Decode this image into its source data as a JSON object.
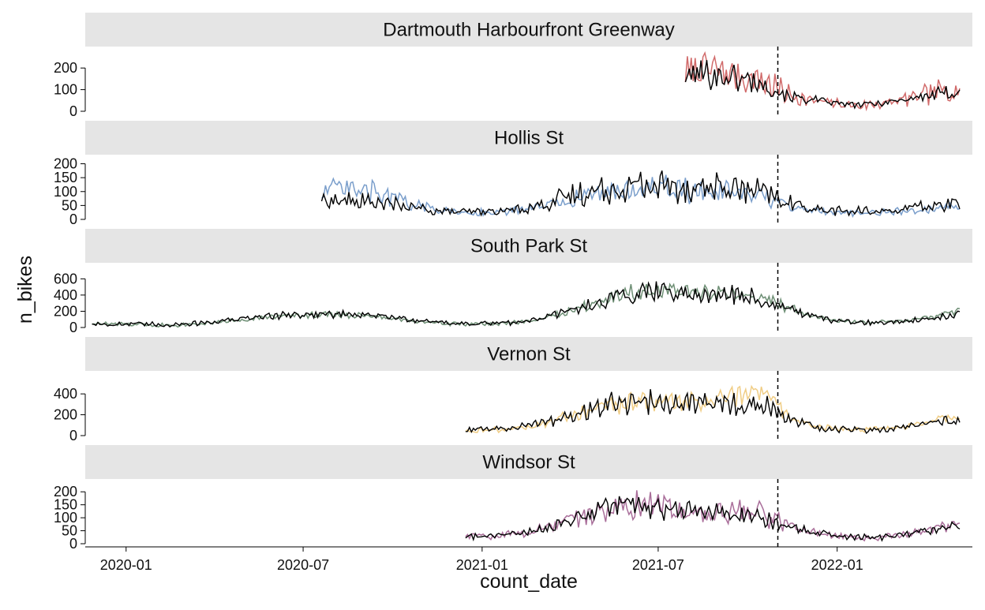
{
  "chart_data": {
    "type": "line",
    "layout": "faceted (5 panels stacked vertically, shared x axis)",
    "xlabel": "count_date",
    "ylabel": "n_bikes",
    "x_axis": {
      "type": "date",
      "range": [
        "2019-11-20",
        "2022-05-20"
      ],
      "ticks": [
        "2020-01-01",
        "2020-07-01",
        "2021-01-01",
        "2021-07-01",
        "2022-01-01"
      ],
      "tick_labels": [
        "2020-01",
        "2020-07",
        "2021-01",
        "2021-07",
        "2022-01"
      ]
    },
    "reference_line": {
      "x": "2021-11-01",
      "style": "dashed",
      "color": "#000000"
    },
    "grid": false,
    "legend": "none",
    "overlay_line_color": "#000000",
    "panels": [
      {
        "title": "Dartmouth Harbourfront Greenway",
        "color": "#d16b6b",
        "ylim": [
          0,
          270
        ],
        "yticks": [
          0,
          100,
          200
        ],
        "ytick_labels": [
          "0",
          "100",
          "200"
        ],
        "observed": {
          "x": [
            "2021-07-29",
            "2021-08-10",
            "2021-08-25",
            "2021-09-10",
            "2021-09-25",
            "2021-10-10",
            "2021-10-25",
            "2021-11-10",
            "2021-11-25",
            "2021-12-10",
            "2021-12-25",
            "2022-01-10",
            "2022-01-25",
            "2022-02-10",
            "2022-02-25",
            "2022-03-10",
            "2022-03-25",
            "2022-04-10",
            "2022-04-25",
            "2022-05-08"
          ],
          "y": [
            160,
            200,
            190,
            175,
            160,
            150,
            120,
            80,
            60,
            45,
            40,
            30,
            25,
            35,
            40,
            55,
            65,
            85,
            100,
            110
          ],
          "amplitude": 85
        },
        "fitted": {
          "x": [
            "2021-07-29",
            "2021-08-10",
            "2021-08-25",
            "2021-09-10",
            "2021-09-25",
            "2021-10-10",
            "2021-10-25",
            "2021-11-10",
            "2021-11-25",
            "2021-12-10",
            "2021-12-25",
            "2022-01-10",
            "2022-01-25",
            "2022-02-10",
            "2022-02-25",
            "2022-03-10",
            "2022-03-25",
            "2022-04-10",
            "2022-04-25",
            "2022-05-08"
          ],
          "y": [
            150,
            180,
            170,
            160,
            150,
            135,
            110,
            75,
            60,
            50,
            40,
            32,
            30,
            35,
            45,
            55,
            65,
            75,
            85,
            95
          ],
          "amplitude": 55
        }
      },
      {
        "title": "Hollis St",
        "color": "#7a9ecb",
        "ylim": [
          0,
          210
        ],
        "yticks": [
          0,
          50,
          100,
          150,
          200
        ],
        "ytick_labels": [
          "0",
          "50",
          "100",
          "150",
          "200"
        ],
        "observed": {
          "x": [
            "2020-07-20",
            "2020-08-15",
            "2020-09-15",
            "2020-10-15",
            "2020-11-15",
            "2020-12-15",
            "2021-01-15",
            "2021-02-15",
            "2021-03-15",
            "2021-04-15",
            "2021-05-15",
            "2021-06-15",
            "2021-07-15",
            "2021-08-15",
            "2021-09-15",
            "2021-10-15",
            "2021-11-15",
            "2021-12-15",
            "2022-01-15",
            "2022-02-15",
            "2022-03-15",
            "2022-04-15",
            "2022-05-08"
          ],
          "y": [
            110,
            105,
            95,
            60,
            35,
            25,
            25,
            35,
            55,
            85,
            105,
            110,
            110,
            100,
            95,
            80,
            45,
            30,
            25,
            25,
            30,
            40,
            45
          ],
          "amplitude": 45
        },
        "fitted": {
          "x": [
            "2020-07-20",
            "2020-08-15",
            "2020-09-15",
            "2020-10-15",
            "2020-11-15",
            "2020-12-15",
            "2021-01-15",
            "2021-02-15",
            "2021-03-15",
            "2021-04-15",
            "2021-05-15",
            "2021-06-15",
            "2021-07-15",
            "2021-08-15",
            "2021-09-15",
            "2021-10-15",
            "2021-11-15",
            "2021-12-15",
            "2022-01-15",
            "2022-02-15",
            "2022-03-15",
            "2022-04-15",
            "2022-05-08"
          ],
          "y": [
            70,
            65,
            60,
            45,
            30,
            25,
            28,
            40,
            65,
            95,
            115,
            120,
            120,
            115,
            110,
            95,
            55,
            35,
            28,
            30,
            38,
            50,
            60
          ],
          "amplitude": 55
        }
      },
      {
        "title": "South Park St",
        "color": "#6e8f75",
        "ylim": [
          0,
          720
        ],
        "yticks": [
          0,
          200,
          400,
          600
        ],
        "ytick_labels": [
          "0",
          "200",
          "400",
          "600"
        ],
        "observed": {
          "x": [
            "2019-11-27",
            "2019-12-25",
            "2020-01-25",
            "2020-02-25",
            "2020-03-25",
            "2020-04-25",
            "2020-05-25",
            "2020-06-25",
            "2020-07-25",
            "2020-08-25",
            "2020-09-25",
            "2020-10-25",
            "2020-11-25",
            "2020-12-25",
            "2021-01-25",
            "2021-02-25",
            "2021-03-25",
            "2021-04-25",
            "2021-05-25",
            "2021-06-25",
            "2021-07-25",
            "2021-08-25",
            "2021-09-25",
            "2021-10-25",
            "2021-11-25",
            "2021-12-25",
            "2022-01-25",
            "2022-02-25",
            "2022-03-25",
            "2022-04-25",
            "2022-05-08"
          ],
          "y": [
            50,
            40,
            30,
            35,
            60,
            90,
            130,
            150,
            160,
            150,
            120,
            80,
            50,
            40,
            50,
            90,
            180,
            300,
            420,
            470,
            440,
            420,
            400,
            330,
            180,
            90,
            60,
            70,
            100,
            170,
            200
          ],
          "amplitude": 90
        },
        "fitted": {
          "x": [
            "2019-11-27",
            "2019-12-25",
            "2020-01-25",
            "2020-02-25",
            "2020-03-25",
            "2020-04-25",
            "2020-05-25",
            "2020-06-25",
            "2020-07-25",
            "2020-08-25",
            "2020-09-25",
            "2020-10-25",
            "2020-11-25",
            "2020-12-25",
            "2021-01-25",
            "2021-02-25",
            "2021-03-25",
            "2021-04-25",
            "2021-05-25",
            "2021-06-25",
            "2021-07-25",
            "2021-08-25",
            "2021-09-25",
            "2021-10-25",
            "2021-11-25",
            "2021-12-25",
            "2022-01-25",
            "2022-02-25",
            "2022-03-25",
            "2022-04-25",
            "2022-05-08"
          ],
          "y": [
            45,
            40,
            35,
            40,
            65,
            100,
            140,
            160,
            165,
            160,
            130,
            90,
            60,
            45,
            55,
            95,
            180,
            290,
            400,
            460,
            430,
            410,
            390,
            320,
            170,
            85,
            55,
            65,
            95,
            150,
            180
          ],
          "amplitude": 110
        }
      },
      {
        "title": "Vernon St",
        "color": "#f0cd85",
        "ylim": [
          0,
          560
        ],
        "yticks": [
          0,
          200,
          400
        ],
        "ytick_labels": [
          "0",
          "200",
          "400"
        ],
        "observed": {
          "x": [
            "2020-12-15",
            "2021-01-15",
            "2021-02-15",
            "2021-03-15",
            "2021-04-15",
            "2021-05-15",
            "2021-06-15",
            "2021-07-15",
            "2021-08-15",
            "2021-09-15",
            "2021-10-15",
            "2021-11-15",
            "2021-12-15",
            "2022-01-15",
            "2022-02-15",
            "2022-03-15",
            "2022-04-15",
            "2022-05-08"
          ],
          "y": [
            50,
            55,
            80,
            140,
            220,
            290,
            330,
            320,
            330,
            380,
            400,
            150,
            80,
            60,
            60,
            90,
            150,
            190
          ],
          "amplitude": 90
        },
        "fitted": {
          "x": [
            "2020-12-15",
            "2021-01-15",
            "2021-02-15",
            "2021-03-15",
            "2021-04-15",
            "2021-05-15",
            "2021-06-15",
            "2021-07-15",
            "2021-08-15",
            "2021-09-15",
            "2021-10-15",
            "2021-11-15",
            "2021-12-15",
            "2022-01-15",
            "2022-02-15",
            "2022-03-15",
            "2022-04-15",
            "2022-05-08"
          ],
          "y": [
            55,
            60,
            90,
            150,
            230,
            300,
            340,
            330,
            320,
            320,
            300,
            140,
            75,
            55,
            58,
            85,
            130,
            160
          ],
          "amplitude": 110
        }
      },
      {
        "title": "Windsor St",
        "color": "#a96e9a",
        "ylim": [
          0,
          225
        ],
        "yticks": [
          0,
          50,
          100,
          150,
          200
        ],
        "ytick_labels": [
          "0",
          "50",
          "100",
          "150",
          "200"
        ],
        "observed": {
          "x": [
            "2020-12-15",
            "2021-01-15",
            "2021-02-15",
            "2021-03-15",
            "2021-04-15",
            "2021-05-15",
            "2021-06-15",
            "2021-07-15",
            "2021-08-15",
            "2021-09-15",
            "2021-10-15",
            "2021-11-15",
            "2021-12-15",
            "2022-01-15",
            "2022-02-15",
            "2022-03-15",
            "2022-04-15",
            "2022-05-08"
          ],
          "y": [
            30,
            30,
            45,
            70,
            110,
            140,
            150,
            135,
            125,
            125,
            115,
            65,
            40,
            25,
            25,
            40,
            60,
            80
          ],
          "amplitude": 45
        },
        "fitted": {
          "x": [
            "2020-12-15",
            "2021-01-15",
            "2021-02-15",
            "2021-03-15",
            "2021-04-15",
            "2021-05-15",
            "2021-06-15",
            "2021-07-15",
            "2021-08-15",
            "2021-09-15",
            "2021-10-15",
            "2021-11-15",
            "2021-12-15",
            "2022-01-15",
            "2022-02-15",
            "2022-03-15",
            "2022-04-15",
            "2022-05-08"
          ],
          "y": [
            28,
            30,
            45,
            70,
            110,
            140,
            150,
            140,
            125,
            120,
            105,
            60,
            38,
            25,
            25,
            38,
            55,
            70
          ],
          "amplitude": 40
        }
      }
    ]
  }
}
